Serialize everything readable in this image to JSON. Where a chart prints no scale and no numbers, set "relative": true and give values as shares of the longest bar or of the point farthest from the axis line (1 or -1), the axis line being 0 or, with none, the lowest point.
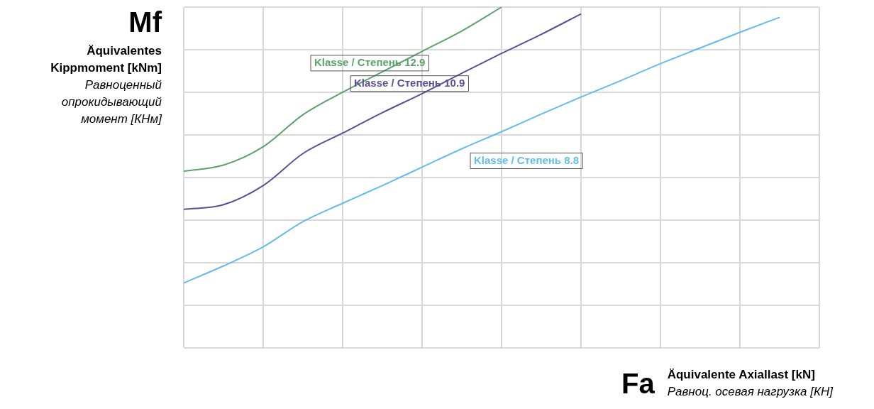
{
  "chart_data": {
    "type": "line",
    "relative": true,
    "xlabel": "Fa",
    "ylabel": "Mf",
    "grid": true,
    "legend": false,
    "marker": "none",
    "line_style": "solid",
    "annotations": [
      "Äquivalentes Kippmoment [kNm]",
      "Равноценный опрокидывающий момент [КНм]",
      "Äquivalente Axiallast [kN]",
      "Равноц. осевая нагрузка [КН]"
    ],
    "categories": [
      null,
      null,
      null,
      null,
      null,
      null,
      null,
      null,
      null,
      null,
      null,
      null,
      null,
      null,
      null,
      null,
      null
    ],
    "series": [
      {
        "name": "Klasse / Степень 12.9",
        "color": "#5aa36a",
        "values": [
          0.518,
          0.536,
          0.59,
          0.684,
          0.75,
          0.81,
          0.87,
          0.93,
          1,
          null,
          null,
          null,
          null,
          null,
          null,
          null,
          null
        ]
      },
      {
        "name": "Klasse / Степень 10.9",
        "color": "#5b4f96",
        "values": [
          0.406,
          0.42,
          0.476,
          0.57,
          0.63,
          0.69,
          0.746,
          0.806,
          0.864,
          0.92,
          0.98,
          null,
          null,
          null,
          null,
          null,
          null
        ]
      },
      {
        "name": "Klasse / Степень 8.8",
        "color": "#63bdea",
        "values": [
          0.19,
          0.24,
          0.296,
          0.37,
          0.424,
          0.476,
          0.53,
          0.584,
          0.634,
          0.686,
          0.736,
          0.784,
          0.834,
          0.88,
          0.926,
          0.97,
          null
        ]
      }
    ]
  }
}
